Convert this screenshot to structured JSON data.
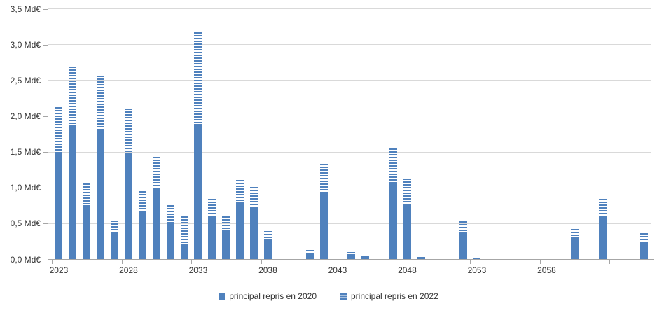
{
  "colors": {
    "bar_blue": "#4f81bd",
    "gridline": "#d9d9d9",
    "axis": "#a6a6a6",
    "text": "#333333"
  },
  "chart_data": {
    "type": "bar",
    "stacked": true,
    "title": "",
    "y_unit": "Md€",
    "ylim": [
      0,
      3.5
    ],
    "y_tick_step": 0.5,
    "y_tick_labels": [
      "0,0 Md€",
      "0,5 Md€",
      "1,0 Md€",
      "1,5 Md€",
      "2,0 Md€",
      "2,5 Md€",
      "3,0 Md€",
      "3,5 Md€"
    ],
    "x_first_year": 2023,
    "x_last_year": 2065,
    "x_tick_interval": 5,
    "x_tick_labels": [
      "2023",
      "2028",
      "2033",
      "2038",
      "2043",
      "2048",
      "2053",
      "2058"
    ],
    "grid": true,
    "legend_position": "bottom",
    "legend": [
      {
        "name": "principal repris en 2020",
        "style": "solid"
      },
      {
        "name": "principal repris en 2022",
        "style": "striped"
      }
    ],
    "bars": [
      {
        "year": 2023,
        "repris_2020": 1.49,
        "repris_2022": 0.64
      },
      {
        "year": 2024,
        "repris_2020": 1.88,
        "repris_2022": 0.82
      },
      {
        "year": 2025,
        "repris_2020": 0.76,
        "repris_2022": 0.31
      },
      {
        "year": 2026,
        "repris_2020": 1.81,
        "repris_2022": 0.76
      },
      {
        "year": 2027,
        "repris_2020": 0.38,
        "repris_2022": 0.17
      },
      {
        "year": 2028,
        "repris_2020": 1.5,
        "repris_2022": 0.61
      },
      {
        "year": 2029,
        "repris_2020": 0.67,
        "repris_2022": 0.29
      },
      {
        "year": 2030,
        "repris_2020": 1.01,
        "repris_2022": 0.43
      },
      {
        "year": 2031,
        "repris_2020": 0.53,
        "repris_2022": 0.23
      },
      {
        "year": 2032,
        "repris_2020": 0.19,
        "repris_2022": 0.42
      },
      {
        "year": 2033,
        "repris_2020": 1.9,
        "repris_2022": 1.28
      },
      {
        "year": 2034,
        "repris_2020": 0.6,
        "repris_2022": 0.25
      },
      {
        "year": 2035,
        "repris_2020": 0.42,
        "repris_2022": 0.19
      },
      {
        "year": 2036,
        "repris_2020": 0.77,
        "repris_2022": 0.34
      },
      {
        "year": 2037,
        "repris_2020": 0.72,
        "repris_2022": 0.3
      },
      {
        "year": 2038,
        "repris_2020": 0.27,
        "repris_2022": 0.13
      },
      {
        "year": 2041,
        "repris_2020": 0.1,
        "repris_2022": 0.04
      },
      {
        "year": 2042,
        "repris_2020": 0.94,
        "repris_2022": 0.4
      },
      {
        "year": 2044,
        "repris_2020": 0.08,
        "repris_2022": 0.03
      },
      {
        "year": 2045,
        "repris_2020": 0.03,
        "repris_2022": 0.02
      },
      {
        "year": 2047,
        "repris_2020": 1.08,
        "repris_2022": 0.47
      },
      {
        "year": 2048,
        "repris_2020": 0.78,
        "repris_2022": 0.35
      },
      {
        "year": 2049,
        "repris_2020": 0.03,
        "repris_2022": 0.01
      },
      {
        "year": 2052,
        "repris_2020": 0.39,
        "repris_2022": 0.15
      },
      {
        "year": 2053,
        "repris_2020": 0.02,
        "repris_2022": 0.01
      },
      {
        "year": 2060,
        "repris_2020": 0.31,
        "repris_2022": 0.12
      },
      {
        "year": 2062,
        "repris_2020": 0.6,
        "repris_2022": 0.25
      },
      {
        "year": 2065,
        "repris_2020": 0.25,
        "repris_2022": 0.12
      }
    ]
  }
}
